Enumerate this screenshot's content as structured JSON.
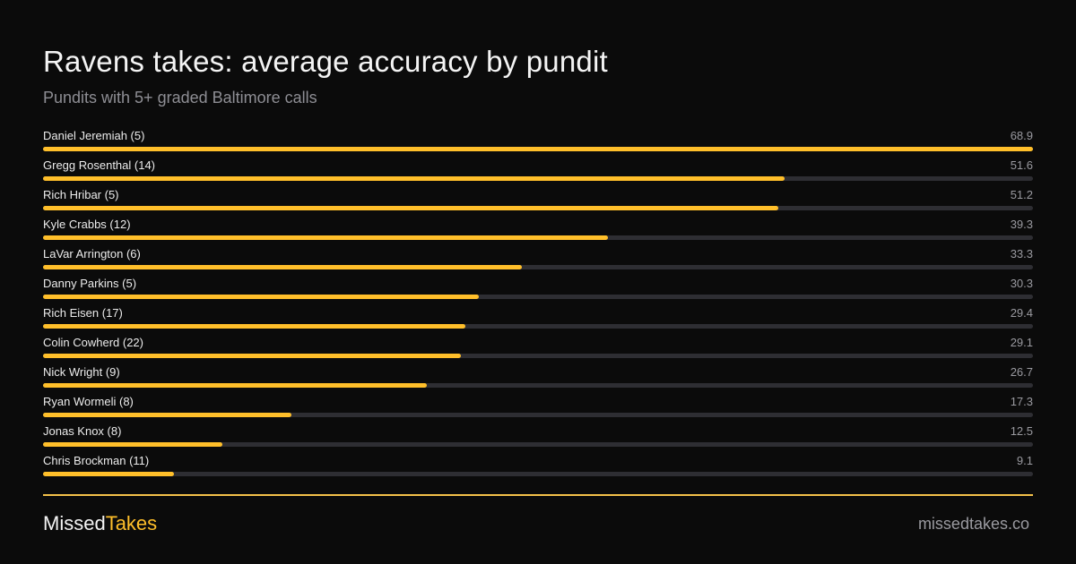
{
  "header": {
    "title": "Ravens takes: average accuracy by pundit",
    "subtitle": "Pundits with 5+ graded Baltimore calls"
  },
  "footer": {
    "brand_part1": "Missed",
    "brand_part2": "Takes",
    "site": "missedtakes.co"
  },
  "colors": {
    "background": "#0b0b0b",
    "bar_fill": "#ffbf2a",
    "bar_track": "#2e2e33",
    "divider": "#f4c14a"
  },
  "chart_data": {
    "type": "bar",
    "orientation": "horizontal",
    "categories": [
      "Daniel Jeremiah (5)",
      "Gregg Rosenthal (14)",
      "Rich Hribar (5)",
      "Kyle Crabbs (12)",
      "LaVar Arrington (6)",
      "Danny Parkins (5)",
      "Rich Eisen (17)",
      "Colin Cowherd (22)",
      "Nick Wright (9)",
      "Ryan Wormeli (8)",
      "Jonas Knox (8)",
      "Chris Brockman (11)"
    ],
    "values": [
      68.9,
      51.6,
      51.2,
      39.3,
      33.3,
      30.3,
      29.4,
      29.1,
      26.7,
      17.3,
      12.5,
      9.1
    ],
    "value_labels": [
      "68.9",
      "51.6",
      "51.2",
      "39.3",
      "33.3",
      "30.3",
      "29.4",
      "29.1",
      "26.7",
      "17.3",
      "12.5",
      "9.1"
    ],
    "title": "Ravens takes: average accuracy by pundit",
    "subtitle": "Pundits with 5+ graded Baltimore calls",
    "xlim": [
      0,
      68.9
    ],
    "grid": false
  }
}
